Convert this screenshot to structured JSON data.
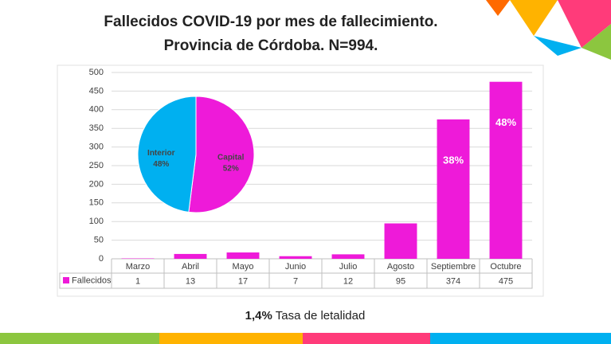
{
  "chart_data": [
    {
      "type": "bar",
      "title": [
        "Fallecidos COVID-19 por mes de fallecimiento.",
        "Provincia de Córdoba. N=994."
      ],
      "categories": [
        "Marzo",
        "Abril",
        "Mayo",
        "Junio",
        "Julio",
        "Agosto",
        "Septiembre",
        "Octubre"
      ],
      "series": [
        {
          "name": "Fallecidos",
          "color": "#ee1ad9",
          "values": [
            1,
            13,
            17,
            7,
            12,
            95,
            374,
            475
          ]
        }
      ],
      "annotations": [
        {
          "category": "Septiembre",
          "text": "38%"
        },
        {
          "category": "Octubre",
          "text": "48%"
        }
      ],
      "ylim": [
        0,
        500
      ],
      "yticks": [
        0,
        50,
        100,
        150,
        200,
        250,
        300,
        350,
        400,
        450,
        500
      ],
      "grid": true
    },
    {
      "type": "pie",
      "categories": [
        "Capital",
        "Interior"
      ],
      "values": [
        52,
        48
      ],
      "value_labels": [
        "52%",
        "48%"
      ],
      "colors": [
        "#ee1ad9",
        "#00b0f0"
      ]
    }
  ],
  "footer": {
    "rate": "1,4%",
    "text": "Tasa de letalidad"
  }
}
